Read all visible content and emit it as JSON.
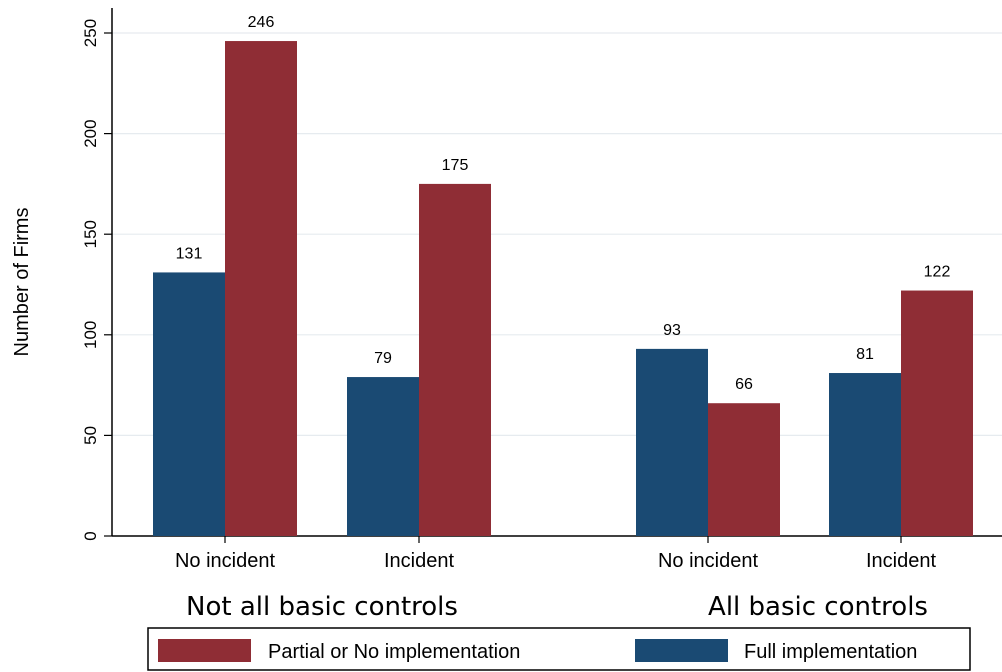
{
  "chart_data": {
    "type": "bar",
    "title": "",
    "ylabel": "Number of Firms",
    "xlabel": "",
    "ylim": [
      0,
      260
    ],
    "yticks": [
      0,
      50,
      100,
      150,
      200,
      250
    ],
    "grid": true,
    "groups": [
      {
        "label": "Not all basic controls",
        "categories": [
          "No incident",
          "Incident"
        ]
      },
      {
        "label": "All basic controls",
        "categories": [
          "No incident",
          "Incident"
        ]
      }
    ],
    "categories": [
      "No incident",
      "Incident",
      "No incident",
      "Incident"
    ],
    "series": [
      {
        "name": "Full implementation",
        "color": "#1a4a73",
        "values": [
          131,
          79,
          93,
          81
        ]
      },
      {
        "name": "Partial or No implementation",
        "color": "#8f2d35",
        "values": [
          246,
          175,
          66,
          122
        ]
      }
    ],
    "legend": {
      "position": "bottom",
      "entries": [
        {
          "label": "Partial or No implementation",
          "color": "#8f2d35"
        },
        {
          "label": "Full implementation",
          "color": "#1a4a73"
        }
      ]
    }
  }
}
